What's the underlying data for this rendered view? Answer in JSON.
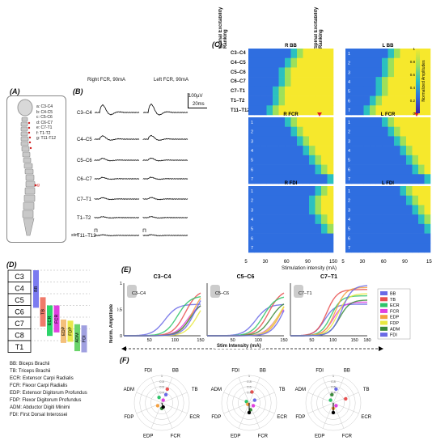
{
  "panelA": {
    "label": "(A)",
    "levels": [
      "a: C3-C4",
      "b: C4-C5",
      "c: C5-C6",
      "d: C6-C7",
      "e: C7-T1",
      "f: T1-T2",
      "g: T11-T12"
    ],
    "marker": "g"
  },
  "panelB": {
    "label": "(B)",
    "right_title": "Right FCR, 90mA",
    "left_title": "Left FCR, 90mA",
    "scale_voltage": "100µV",
    "scale_time": "20ms",
    "rows": [
      "C3–C4",
      "C4–C5",
      "C5–C6",
      "C6–C7",
      "C7–T1",
      "T1–T2",
      "T11–T12"
    ],
    "stim_label": "stim"
  },
  "panelC": {
    "label": "(C)",
    "ylabel": "Spinal Excitability Ranking",
    "row_labels_top": [
      "C3–C4",
      "C4–C5",
      "C5–C6",
      "C6–C7",
      "C7–T1",
      "T1–T2",
      "T11–T12"
    ],
    "ranks": [
      "1",
      "2",
      "3",
      "4",
      "5",
      "6",
      "7"
    ],
    "heatmaps": [
      {
        "title": "R BB"
      },
      {
        "title": "L BB"
      },
      {
        "title": "R FCR"
      },
      {
        "title": "L FCR"
      },
      {
        "title": "R FDI"
      },
      {
        "title": "L FDI"
      }
    ],
    "colorbar_title": "Normalized Amplitudes",
    "colorbar_ticks": [
      "0",
      "0.2",
      "0.4",
      "0.6",
      "0.8",
      "1"
    ],
    "x_ticks": [
      "5",
      "30",
      "60",
      "90",
      "150",
      "5",
      "30",
      "60",
      "90",
      "150"
    ],
    "xlabel": "Stimulation intensity (mA)"
  },
  "panelD": {
    "label": "(D)",
    "segments": [
      "C3",
      "C4",
      "C5",
      "C6",
      "C7",
      "C8",
      "T1"
    ],
    "bars": [
      {
        "name": "BB",
        "color": "#7b7bf0"
      },
      {
        "name": "TB",
        "color": "#f07a6a"
      },
      {
        "name": "ECR",
        "color": "#2ed46a"
      },
      {
        "name": "FCR",
        "color": "#e040e0"
      },
      {
        "name": "EDP",
        "color": "#f4c07a"
      },
      {
        "name": "FDP",
        "color": "#e8e84a"
      },
      {
        "name": "ADM",
        "color": "#6ad46a"
      },
      {
        "name": "FDI",
        "color": "#a0a0e0"
      }
    ],
    "legend": [
      "BB: Biceps Brachii",
      "TB: Triceps Brachii",
      "ECR: Extensor Carpi Radialis",
      "FCR: Flexor Carpi Radialis",
      "EDP: Extensor Digitorum Profundus",
      "FDP: Flexor Digitorum Profundus",
      "ADM: Abductor Digiti Minimi",
      "FDI: First Dorsal Interossei"
    ]
  },
  "panelE": {
    "label": "(E)",
    "ylabel": "Norm. Amplitude",
    "xlabel": "Stim Intensity (mA)",
    "subplots": [
      {
        "title": "C3–C4",
        "inset": "C3–C4",
        "xticks": [
          "50",
          "100",
          "150"
        ]
      },
      {
        "title": "C5–C6",
        "inset": "C5–C6",
        "xticks": [
          "50",
          "100",
          "150"
        ]
      },
      {
        "title": "C7–T1",
        "inset": "C7–T1",
        "xticks": [
          "50",
          "100",
          "150",
          "180"
        ]
      }
    ],
    "yticks": [
      "0",
      "0.5",
      "1"
    ],
    "legend": [
      {
        "name": "BB",
        "color": "#6a6ae6"
      },
      {
        "name": "TB",
        "color": "#e85050"
      },
      {
        "name": "ECR",
        "color": "#2ec46a"
      },
      {
        "name": "FCR",
        "color": "#e040e0"
      },
      {
        "name": "EDP",
        "color": "#f4a040"
      },
      {
        "name": "FDP",
        "color": "#e8e840"
      },
      {
        "name": "ADM",
        "color": "#3a8a3a"
      },
      {
        "name": "FDI",
        "color": "#6a6ae6"
      }
    ]
  },
  "panelF": {
    "label": "(F)",
    "axes": [
      "BB",
      "TB",
      "ECR",
      "FCR",
      "EDP",
      "FDP",
      "ADM",
      "FDI"
    ],
    "rings": [
      "0.4",
      "0.6",
      "0.8",
      "1"
    ]
  }
}
